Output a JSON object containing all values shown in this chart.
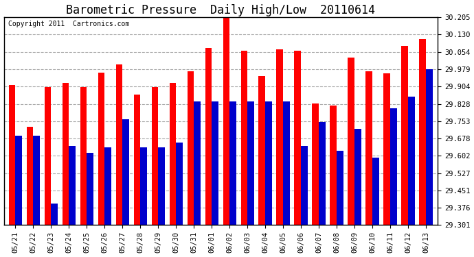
{
  "title": "Barometric Pressure  Daily High/Low  20110614",
  "copyright": "Copyright 2011  Cartronics.com",
  "dates": [
    "05/21",
    "05/22",
    "05/23",
    "05/24",
    "05/25",
    "05/26",
    "05/27",
    "05/28",
    "05/29",
    "05/30",
    "05/31",
    "06/01",
    "06/02",
    "06/03",
    "06/04",
    "06/05",
    "06/06",
    "06/07",
    "06/08",
    "06/09",
    "06/10",
    "06/11",
    "06/12",
    "06/13"
  ],
  "highs": [
    29.91,
    29.73,
    29.9,
    29.92,
    29.9,
    29.965,
    30.0,
    29.87,
    29.9,
    29.92,
    29.97,
    30.07,
    30.23,
    30.06,
    29.95,
    30.065,
    30.06,
    29.83,
    29.82,
    30.03,
    29.97,
    29.96,
    30.08,
    30.11
  ],
  "lows": [
    29.69,
    29.69,
    29.395,
    29.645,
    29.615,
    29.64,
    29.76,
    29.64,
    29.64,
    29.66,
    29.84,
    29.84,
    29.84,
    29.84,
    29.84,
    29.84,
    29.645,
    29.75,
    29.625,
    29.72,
    29.595,
    29.81,
    29.86,
    29.98
  ],
  "bar_color_high": "#ff0000",
  "bar_color_low": "#0000cc",
  "background_color": "#ffffff",
  "grid_color": "#aaaaaa",
  "ymin": 29.301,
  "ymax": 30.205,
  "yticks": [
    29.301,
    29.376,
    29.451,
    29.527,
    29.602,
    29.678,
    29.753,
    29.828,
    29.904,
    29.979,
    30.054,
    30.13,
    30.205
  ],
  "title_fontsize": 12,
  "copyright_fontsize": 7,
  "tick_fontsize": 7.5,
  "bar_width": 0.38
}
